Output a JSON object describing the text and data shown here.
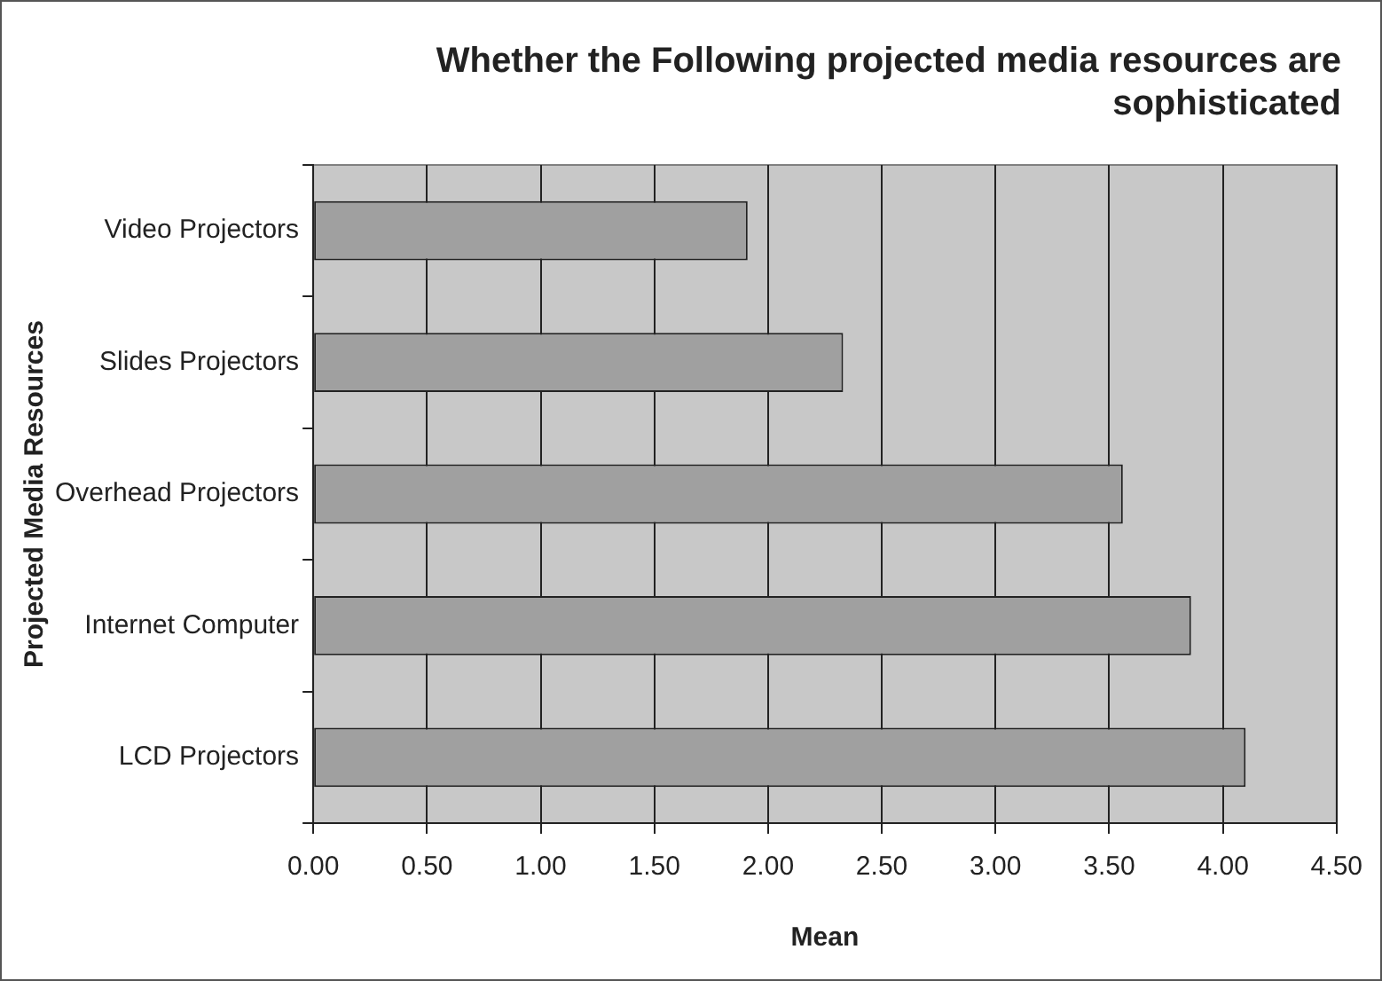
{
  "chart_data": {
    "type": "bar",
    "orientation": "horizontal",
    "title": [
      "Whether the Following projected media resources are",
      "sophisticated"
    ],
    "xlabel": "Mean",
    "ylabel": "Projected Media Resources",
    "categories": [
      "Video Projectors",
      "Slides Projectors",
      "Overhead Projectors",
      "Internet Computer",
      "LCD Projectors"
    ],
    "values": [
      1.91,
      2.33,
      3.56,
      3.86,
      4.1
    ],
    "color": "#a0a0a0",
    "xlim": [
      0,
      4.5
    ],
    "xticks": [
      {
        "value": 0,
        "label": "0.00"
      },
      {
        "value": 0.5,
        "label": "0.50"
      },
      {
        "value": 1,
        "label": "1.00"
      },
      {
        "value": 1.5,
        "label": "1.50"
      },
      {
        "value": 2,
        "label": "2.00"
      },
      {
        "value": 2.5,
        "label": "2.50"
      },
      {
        "value": 3,
        "label": "3.00"
      },
      {
        "value": 3.5,
        "label": "3.50"
      },
      {
        "value": 4,
        "label": "4.00"
      },
      {
        "value": 4.5,
        "label": "4.50"
      }
    ],
    "grid": "x",
    "legend": false
  }
}
